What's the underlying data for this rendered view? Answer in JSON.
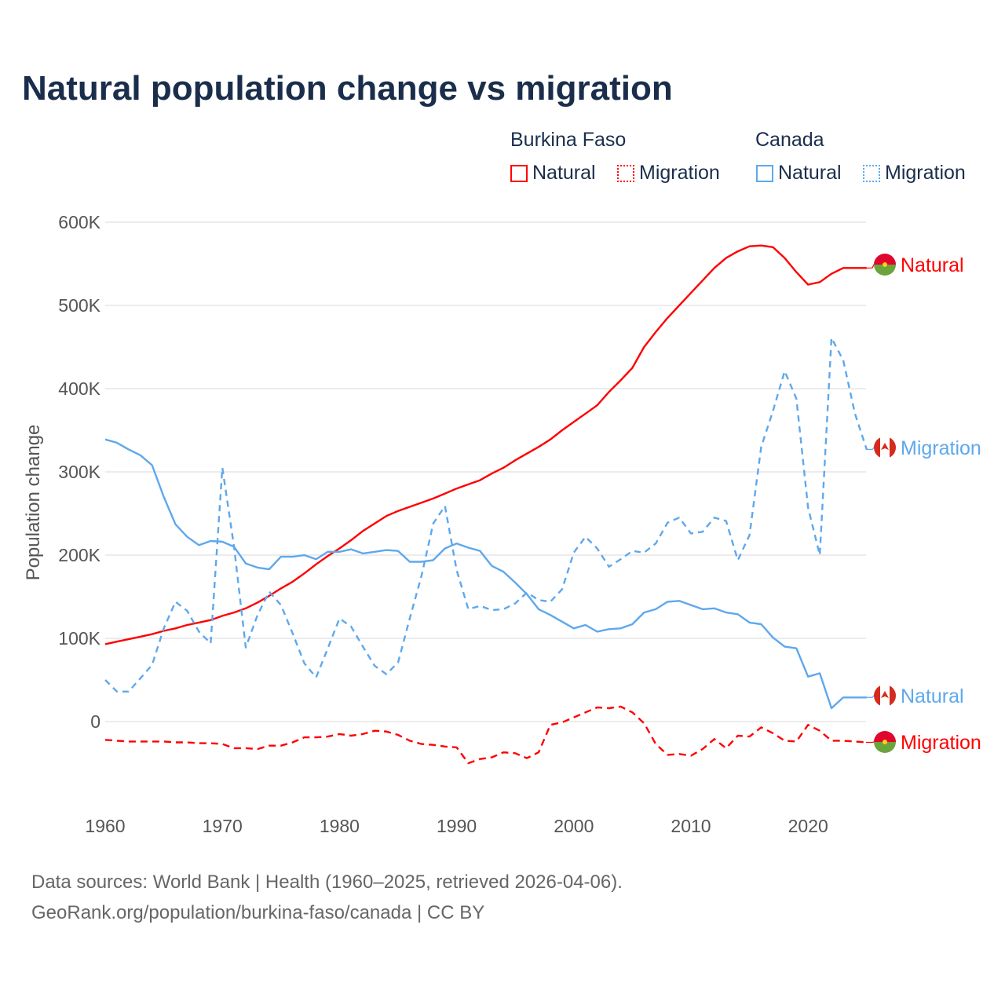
{
  "chart_data": {
    "type": "line",
    "title": "Natural population change vs migration",
    "xlabel": "",
    "ylabel": "Population change",
    "xlim": [
      1960,
      2025
    ],
    "ylim": [
      -100000,
      600000
    ],
    "yticks": [
      0,
      100000,
      200000,
      300000,
      400000,
      500000,
      600000
    ],
    "ytick_labels": [
      "0",
      "100K",
      "200K",
      "300K",
      "400K",
      "500K",
      "600K"
    ],
    "xticks": [
      1960,
      1970,
      1980,
      1990,
      2000,
      2010,
      2020
    ],
    "xtick_labels": [
      "1960",
      "1970",
      "1980",
      "1990",
      "2000",
      "2010",
      "2020"
    ],
    "grid": true,
    "legend_position": "top-right",
    "legend_groups": [
      "Burkina Faso",
      "Canada"
    ],
    "x_start": 1960,
    "series": [
      {
        "name": "Natural",
        "country": "Burkina Faso",
        "color": "#ff0000",
        "dash": "solid",
        "end_label": "Natural",
        "values_k": [
          93,
          96,
          99,
          102,
          105,
          109,
          112,
          116,
          119,
          122,
          127,
          131,
          136,
          143,
          151,
          160,
          168,
          178,
          189,
          199,
          208,
          218,
          229,
          238,
          247,
          253,
          258,
          263,
          268,
          274,
          280,
          285,
          290,
          298,
          305,
          314,
          322,
          330,
          339,
          350,
          360,
          370,
          380,
          396,
          410,
          425,
          450,
          468,
          485,
          500,
          515,
          530,
          545,
          557,
          565,
          571,
          572,
          570,
          557,
          540,
          525,
          528,
          538,
          545,
          545,
          545
        ]
      },
      {
        "name": "Migration",
        "country": "Burkina Faso",
        "color": "#ff0000",
        "dash": "dashed",
        "end_label": "Migration",
        "values_k": [
          -22,
          -23,
          -24,
          -24,
          -24,
          -24,
          -25,
          -25,
          -26,
          -26,
          -27,
          -32,
          -32,
          -33,
          -29,
          -29,
          -25,
          -19,
          -19,
          -18,
          -15,
          -17,
          -15,
          -11,
          -12,
          -16,
          -23,
          -27,
          -28,
          -30,
          -31,
          -50,
          -45,
          -43,
          -37,
          -38,
          -44,
          -37,
          -4,
          -1,
          5,
          11,
          17,
          16,
          18,
          11,
          -2,
          -27,
          -40,
          -39,
          -41,
          -33,
          -21,
          -32,
          -17,
          -18,
          -7,
          -14,
          -23,
          -24,
          -4,
          -11,
          -23,
          -23,
          -24,
          -25
        ]
      },
      {
        "name": "Natural",
        "country": "Canada",
        "color": "#5ea8ec",
        "dash": "solid",
        "end_label": "Natural",
        "values_k": [
          339,
          335,
          327,
          320,
          308,
          270,
          237,
          222,
          212,
          217,
          216,
          210,
          190,
          185,
          183,
          198,
          198,
          200,
          195,
          204,
          204,
          207,
          202,
          204,
          206,
          205,
          192,
          192,
          194,
          208,
          214,
          209,
          205,
          187,
          180,
          167,
          153,
          135,
          128,
          120,
          112,
          116,
          108,
          111,
          112,
          117,
          131,
          135,
          144,
          145,
          140,
          135,
          136,
          131,
          129,
          119,
          117,
          101,
          90,
          88,
          54,
          58,
          16,
          29,
          29,
          29
        ]
      },
      {
        "name": "Migration",
        "country": "Canada",
        "color": "#5ea8ec",
        "dash": "dotted",
        "end_label": "Migration",
        "values_k": [
          50,
          36,
          36,
          52,
          68,
          112,
          144,
          133,
          108,
          94,
          305,
          210,
          89,
          128,
          156,
          140,
          106,
          70,
          53,
          88,
          124,
          114,
          90,
          67,
          57,
          71,
          124,
          175,
          238,
          259,
          182,
          135,
          139,
          134,
          135,
          142,
          155,
          146,
          144,
          159,
          203,
          222,
          208,
          186,
          195,
          205,
          203,
          214,
          239,
          245,
          226,
          228,
          245,
          241,
          194,
          224,
          330,
          373,
          421,
          388,
          257,
          200,
          461,
          434,
          370,
          327
        ]
      }
    ]
  },
  "footer": {
    "line1": "Data sources: World Bank | Health (1960–2025, retrieved 2026-04-06).",
    "line2": "GeoRank.org/population/burkina-faso/canada | CC BY"
  }
}
